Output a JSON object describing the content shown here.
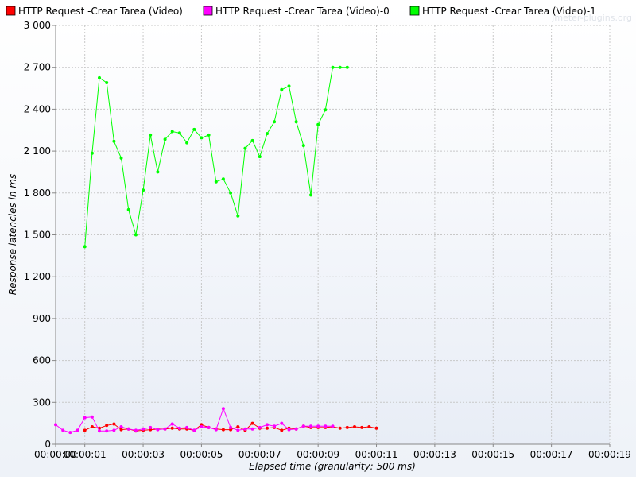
{
  "watermark": "jmeter-plugins.org",
  "chart_data": {
    "type": "line",
    "title": "",
    "xlabel": "Elapsed time (granularity: 500 ms)",
    "ylabel": "Response latencies in ms",
    "ylim": [
      0,
      3000
    ],
    "xlim": [
      0,
      19
    ],
    "yticks": [
      0,
      300,
      600,
      900,
      1200,
      1500,
      1800,
      2100,
      2400,
      2700,
      3000
    ],
    "ytick_labels": [
      "0",
      "300",
      "600",
      "900",
      "1 200",
      "1 500",
      "1 800",
      "2 100",
      "2 400",
      "2 700",
      "3 000"
    ],
    "xticks": [
      0,
      1,
      3,
      5,
      7,
      9,
      11,
      13,
      15,
      17,
      19
    ],
    "xtick_labels": [
      "00:00:00",
      "00:00:01",
      "00:00:03",
      "00:00:05",
      "00:00:07",
      "00:00:09",
      "00:00:11",
      "00:00:13",
      "00:00:15",
      "00:00:17",
      "00:00:19"
    ],
    "grid": true,
    "legend_position": "top",
    "series": [
      {
        "name": "HTTP Request -Crear Tarea  (Video)",
        "color": "#ff0000",
        "x": [
          1.0,
          1.25,
          1.5,
          1.75,
          2.0,
          2.25,
          2.5,
          2.75,
          3.0,
          3.25,
          3.5,
          3.75,
          4.0,
          4.25,
          4.5,
          4.75,
          5.0,
          5.25,
          5.5,
          5.75,
          6.0,
          6.25,
          6.5,
          6.75,
          7.0,
          7.25,
          7.5,
          7.75,
          8.0,
          8.25,
          8.5,
          8.75,
          9.0,
          9.25,
          9.5,
          9.75,
          10.0,
          10.25,
          10.5,
          10.75,
          11.0
        ],
        "y": [
          100,
          125,
          115,
          135,
          145,
          105,
          110,
          95,
          100,
          105,
          108,
          110,
          115,
          110,
          110,
          100,
          140,
          120,
          110,
          105,
          105,
          125,
          100,
          150,
          115,
          115,
          120,
          100,
          115,
          110,
          130,
          120,
          120,
          120,
          125,
          115,
          120,
          125,
          120,
          125,
          115
        ],
        "x_offset_from": 1
      },
      {
        "name": "HTTP Request -Crear Tarea  (Video)-0",
        "color": "#ff00ff",
        "x": [
          0,
          0.25,
          0.5,
          0.75,
          1.0,
          1.25,
          1.5,
          1.75,
          2.0,
          2.25,
          2.5,
          2.75,
          3.0,
          3.25,
          3.5,
          3.75,
          4.0,
          4.25,
          4.5,
          4.75,
          5.0,
          5.25,
          5.5,
          5.75,
          6.0,
          6.25,
          6.5,
          6.75,
          7.0,
          7.25,
          7.5,
          7.75,
          8.0,
          8.25,
          8.5,
          8.75,
          9.0,
          9.25,
          9.5
        ],
        "y": [
          140,
          100,
          85,
          100,
          190,
          195,
          95,
          95,
          100,
          125,
          110,
          100,
          110,
          120,
          105,
          110,
          145,
          115,
          120,
          100,
          125,
          120,
          105,
          255,
          120,
          100,
          110,
          110,
          120,
          140,
          130,
          150,
          105,
          110,
          130,
          130,
          130,
          130,
          130
        ]
      },
      {
        "name": "HTTP Request -Crear Tarea  (Video)-1",
        "color": "#00ff00",
        "x": [
          1.0,
          1.25,
          1.5,
          1.75,
          2.0,
          2.25,
          2.5,
          2.75,
          3.0,
          3.25,
          3.5,
          3.75,
          4.0,
          4.25,
          4.5,
          4.75,
          5.0,
          5.25,
          5.5,
          5.75,
          6.0,
          6.25,
          6.5,
          6.75,
          7.0,
          7.25,
          7.5,
          7.75,
          8.0,
          8.25,
          8.5,
          8.75,
          9.0,
          9.25,
          9.5,
          9.75,
          10.0
        ],
        "y": [
          1415,
          2085,
          2625,
          2590,
          2170,
          2050,
          1680,
          1500,
          1820,
          2215,
          1950,
          2185,
          2240,
          2230,
          2160,
          2255,
          2195,
          2215,
          1880,
          1900,
          1800,
          1635,
          2120,
          2175,
          2060,
          2225,
          2310,
          2540,
          2565,
          2310,
          2140,
          1785,
          2290,
          2395,
          2700,
          2700,
          2700
        ]
      }
    ]
  }
}
